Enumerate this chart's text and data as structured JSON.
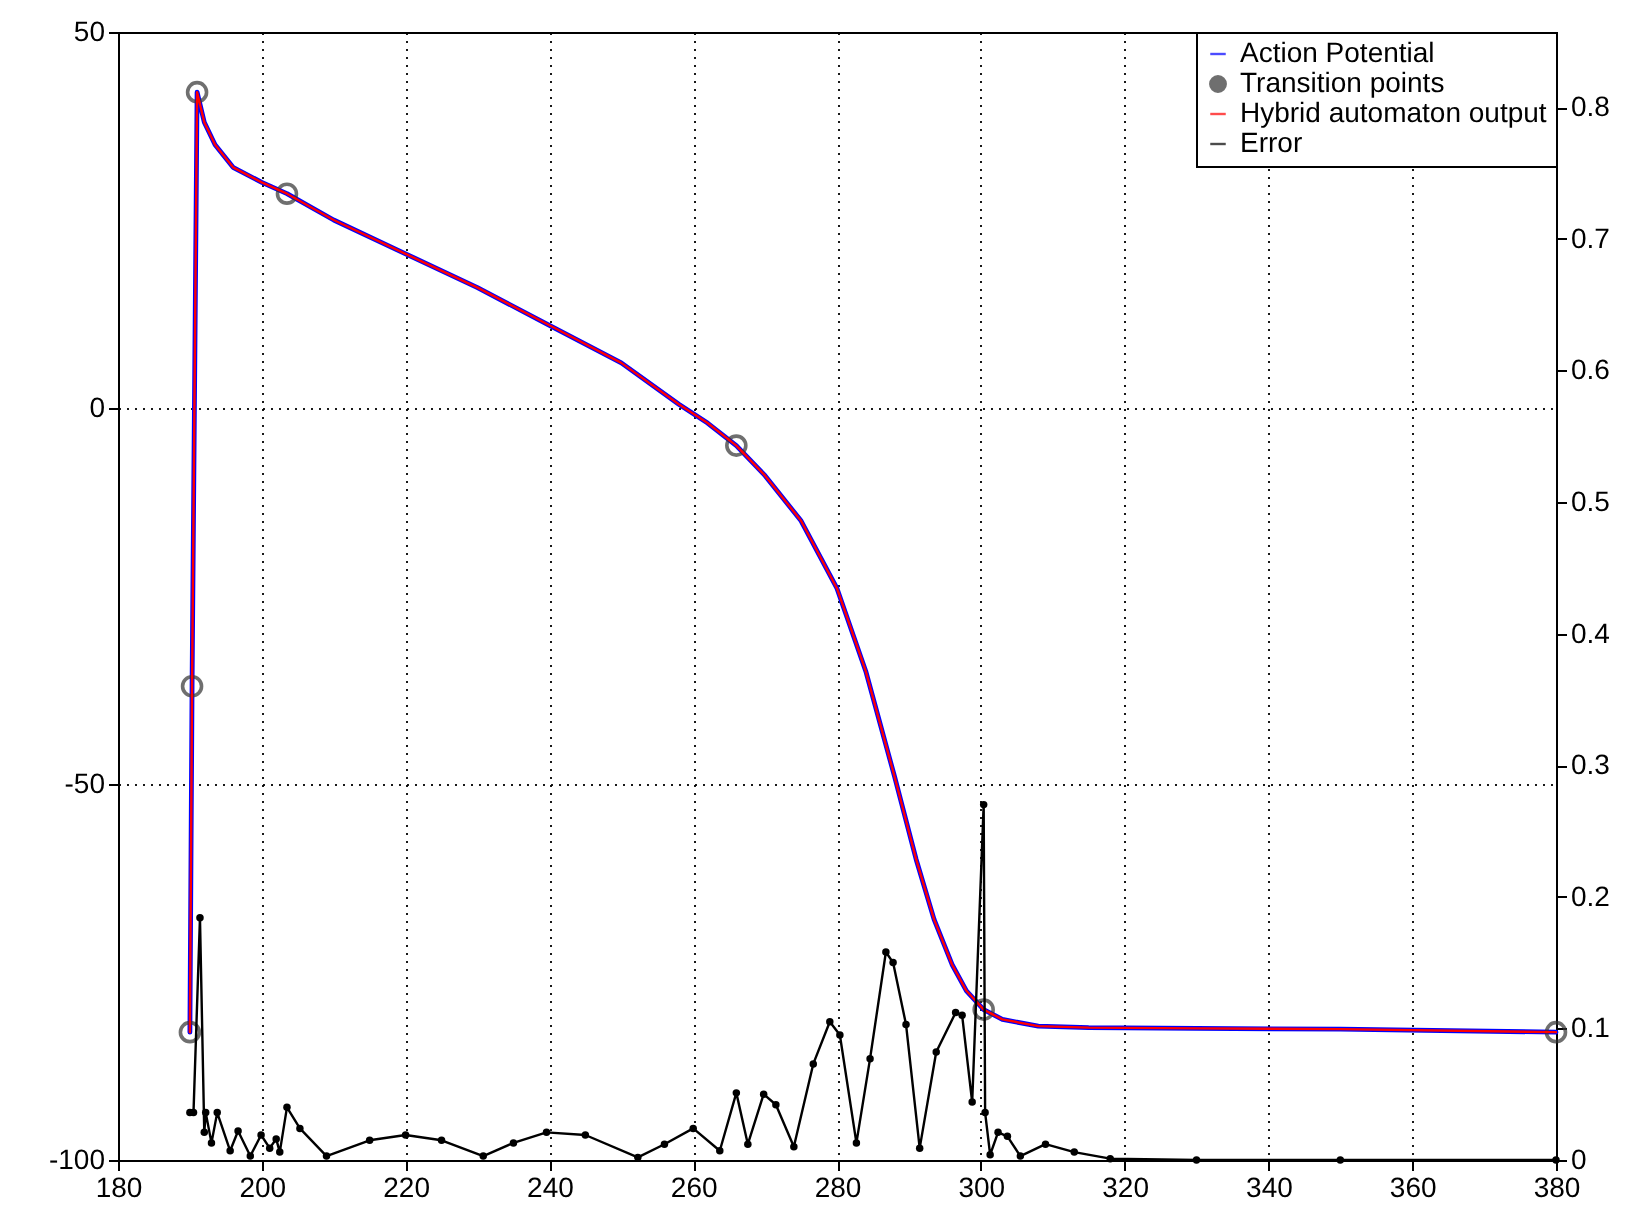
{
  "chart_data": {
    "type": "line",
    "xlim": [
      180,
      380
    ],
    "xticks": [
      180,
      200,
      220,
      240,
      260,
      280,
      300,
      320,
      340,
      360,
      380
    ],
    "ylim": [
      -100,
      50
    ],
    "yticks": [
      -100,
      -50,
      0,
      50
    ],
    "y2lim": [
      0,
      0.857
    ],
    "y2ticks": [
      0,
      0.1,
      0.2,
      0.3,
      0.4,
      0.5,
      0.6,
      0.7,
      0.8
    ],
    "grid": true,
    "legend": "top right",
    "series": [
      {
        "name": "Action Potential",
        "color": "#0000ff",
        "x": [
          190,
          190.3,
          191,
          192,
          193.5,
          196,
          200,
          203.5,
          210,
          220,
          230,
          240,
          250,
          258,
          262,
          266,
          270,
          275,
          280,
          284,
          288,
          291,
          293.5,
          296,
          298,
          300.4,
          303,
          308,
          315,
          330,
          350,
          380
        ],
        "values": [
          -83,
          -37,
          42,
          38,
          35,
          32,
          30,
          28.5,
          25,
          20.5,
          16,
          11,
          6,
          0.5,
          -2,
          -5,
          -9,
          -15,
          -24,
          -35,
          -49,
          -60,
          -68,
          -74,
          -77.5,
          -80,
          -81.3,
          -82.2,
          -82.4,
          -82.5,
          -82.6,
          -83
        ]
      },
      {
        "name": "Transition points",
        "type": "scatter",
        "marker": "circle",
        "color": "#333333",
        "x": [
          190,
          190.3,
          191,
          203.5,
          266,
          300.4,
          380
        ],
        "values": [
          -83,
          -37,
          42,
          28.5,
          -5,
          -80,
          -83
        ]
      },
      {
        "name": "Hybrid automaton output",
        "color": "#ff0000",
        "x": [
          190,
          190.3,
          191,
          192,
          193.5,
          196,
          200,
          203.5,
          210,
          220,
          230,
          240,
          250,
          258,
          262,
          266,
          270,
          275,
          280,
          284,
          288,
          291,
          293.5,
          296,
          298,
          300.4,
          303,
          308,
          315,
          330,
          350,
          380
        ],
        "values": [
          -83,
          -37,
          42,
          38,
          35,
          32,
          30,
          28.5,
          25,
          20.5,
          16,
          11,
          6,
          0.5,
          -2,
          -5,
          -9,
          -15,
          -24,
          -35,
          -49,
          -60,
          -68,
          -74,
          -77.5,
          -80,
          -81.3,
          -82.2,
          -82.4,
          -82.5,
          -82.6,
          -83
        ]
      },
      {
        "name": "Error",
        "marker": "circle",
        "axis": "y2",
        "color": "#000000",
        "x": [
          190,
          190.5,
          191.4,
          192,
          192.2,
          193,
          193.8,
          195.6,
          196.7,
          198.4,
          199.9,
          201.1,
          202,
          202.5,
          203.5,
          205.3,
          209,
          215,
          220,
          225,
          230.8,
          235,
          239.6,
          245,
          252.3,
          256,
          260,
          263.7,
          266,
          267.6,
          269.8,
          271.5,
          274,
          276.7,
          279,
          280.4,
          282.7,
          284.6,
          286.8,
          287.8,
          289.6,
          291.5,
          293.8,
          296.5,
          297.4,
          298.8,
          300.4,
          300.6,
          301.3,
          302.4,
          303.7,
          305.5,
          309,
          313,
          318,
          330,
          350,
          380
        ],
        "values": [
          0.036,
          0.036,
          0.184,
          0.021,
          0.036,
          0.013,
          0.036,
          0.007,
          0.022,
          0.003,
          0.019,
          0.009,
          0.016,
          0.006,
          0.04,
          0.024,
          0.003,
          0.015,
          0.019,
          0.015,
          0.003,
          0.013,
          0.021,
          0.019,
          0.002,
          0.012,
          0.024,
          0.007,
          0.051,
          0.012,
          0.05,
          0.042,
          0.01,
          0.073,
          0.105,
          0.095,
          0.013,
          0.077,
          0.158,
          0.15,
          0.103,
          0.009,
          0.082,
          0.112,
          0.11,
          0.044,
          0.27,
          0.036,
          0.004,
          0.021,
          0.018,
          0.003,
          0.012,
          0.006,
          0.001,
          0,
          0,
          0
        ]
      }
    ]
  }
}
